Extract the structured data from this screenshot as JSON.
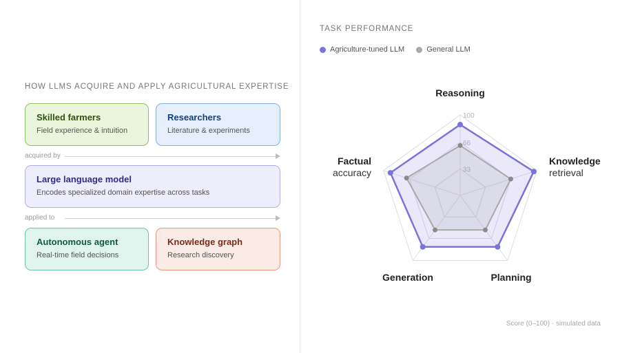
{
  "diagram": {
    "title": "HOW LLMS ACQUIRE AND APPLY AGRICULTURAL EXPERTISE",
    "sources": [
      {
        "title": "Skilled farmers",
        "subtitle": "Field experience & intuition"
      },
      {
        "title": "Researchers",
        "subtitle": "Literature & experiments"
      }
    ],
    "acquired_label": "acquired by",
    "model": {
      "title": "Large language model",
      "subtitle": "Encodes specialized domain expertise across tasks"
    },
    "applied_label": "applied to",
    "applications": [
      {
        "title": "Autonomous agent",
        "subtitle": "Real-time field decisions"
      },
      {
        "title": "Knowledge graph",
        "subtitle": "Research discovery"
      }
    ]
  },
  "chart_title": "TASK PERFORMANCE",
  "chart_note": "Score (0–100) · simulated data",
  "chart_data": {
    "type": "radar",
    "axes": [
      {
        "line1": "Reasoning",
        "line2": ""
      },
      {
        "line1": "Knowledge",
        "line2": "retrieval"
      },
      {
        "line1": "Planning",
        "line2": ""
      },
      {
        "line1": "Generation",
        "line2": ""
      },
      {
        "line1": "Factual",
        "line2": "accuracy"
      }
    ],
    "range": [
      0,
      100
    ],
    "ticks": [
      33,
      66,
      100
    ],
    "legend_placement": "top-left",
    "series": [
      {
        "name": "Agriculture-tuned LLM",
        "color": "#7b73d9",
        "values": [
          88,
          96,
          79,
          79,
          91
        ]
      },
      {
        "name": "General LLM",
        "color": "#a9a9a9",
        "values": [
          62,
          66,
          53,
          53,
          70
        ]
      }
    ]
  }
}
